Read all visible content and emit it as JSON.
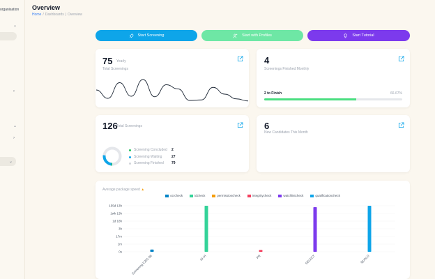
{
  "sidebar": {
    "org_label": "organisation"
  },
  "header": {
    "title": "Overview",
    "breadcrumb": [
      "Home",
      "Dashboards",
      "Overview"
    ]
  },
  "actions": {
    "start_screening": "Start Screening",
    "start_with_profiles": "Start with Profiles",
    "start_tutorial": "Start Tutorial"
  },
  "cards": {
    "yearly": {
      "value": "75",
      "period": "Yearly",
      "label": "Total Screenings"
    },
    "monthly_finished": {
      "value": "4",
      "label": "Screenings Finished Monthly",
      "progress_label": "2 to Finish",
      "progress_pct_text": "66.67%",
      "progress": 0.6667
    },
    "total": {
      "value": "126",
      "label": "Total Screenings",
      "rows": [
        {
          "label": "Screening Concluded",
          "value": "2",
          "color": "#22c55e"
        },
        {
          "label": "Screening Waiting",
          "value": "27",
          "color": "#0ea5e9"
        },
        {
          "label": "Screening Finished",
          "value": "79",
          "color": "#d1d5db"
        }
      ]
    },
    "new_candidates": {
      "value": "6",
      "label": "New Candidates This Month"
    }
  },
  "colors": {
    "accent_blue": "#0ea5e9",
    "accent_green": "#6ee7a5",
    "accent_purple": "#7c3aed",
    "progress": "#4ade80"
  },
  "chart_data": {
    "type": "bar",
    "title": "Average package speed",
    "legend": [
      {
        "name": "ocrcheck",
        "color": "#0284c7"
      },
      {
        "name": "idcheck",
        "color": "#34d399"
      },
      {
        "name": "permissioncheck",
        "color": "#f59e0b"
      },
      {
        "name": "integritycheck",
        "color": "#f43f5e"
      },
      {
        "name": "watchlistcheck",
        "color": "#7c3aed"
      },
      {
        "name": "qualificationcheck",
        "color": "#0ea5e9"
      }
    ],
    "y_ticks": [
      "0s",
      "1m",
      "17m",
      "3h",
      "1d 18h",
      "1wk 13h",
      "155d 13h"
    ],
    "categories": [
      "Screening V201.06",
      "ID-VI",
      "PR",
      "SELECT",
      "QUALD"
    ],
    "bars": [
      {
        "category": 0,
        "series": "ocrcheck",
        "level": 0.05
      },
      {
        "category": 1,
        "series": "idcheck",
        "level": 1.0
      },
      {
        "category": 2,
        "series": "integritycheck",
        "level": 0.04
      },
      {
        "category": 3,
        "series": "watchlistcheck",
        "level": 0.97
      },
      {
        "category": 4,
        "series": "qualificationcheck",
        "level": 1.0
      }
    ],
    "yearly_sparkline": [
      28,
      12,
      42,
      16,
      48,
      15,
      38,
      30,
      8,
      9,
      33,
      20,
      11,
      7
    ]
  }
}
